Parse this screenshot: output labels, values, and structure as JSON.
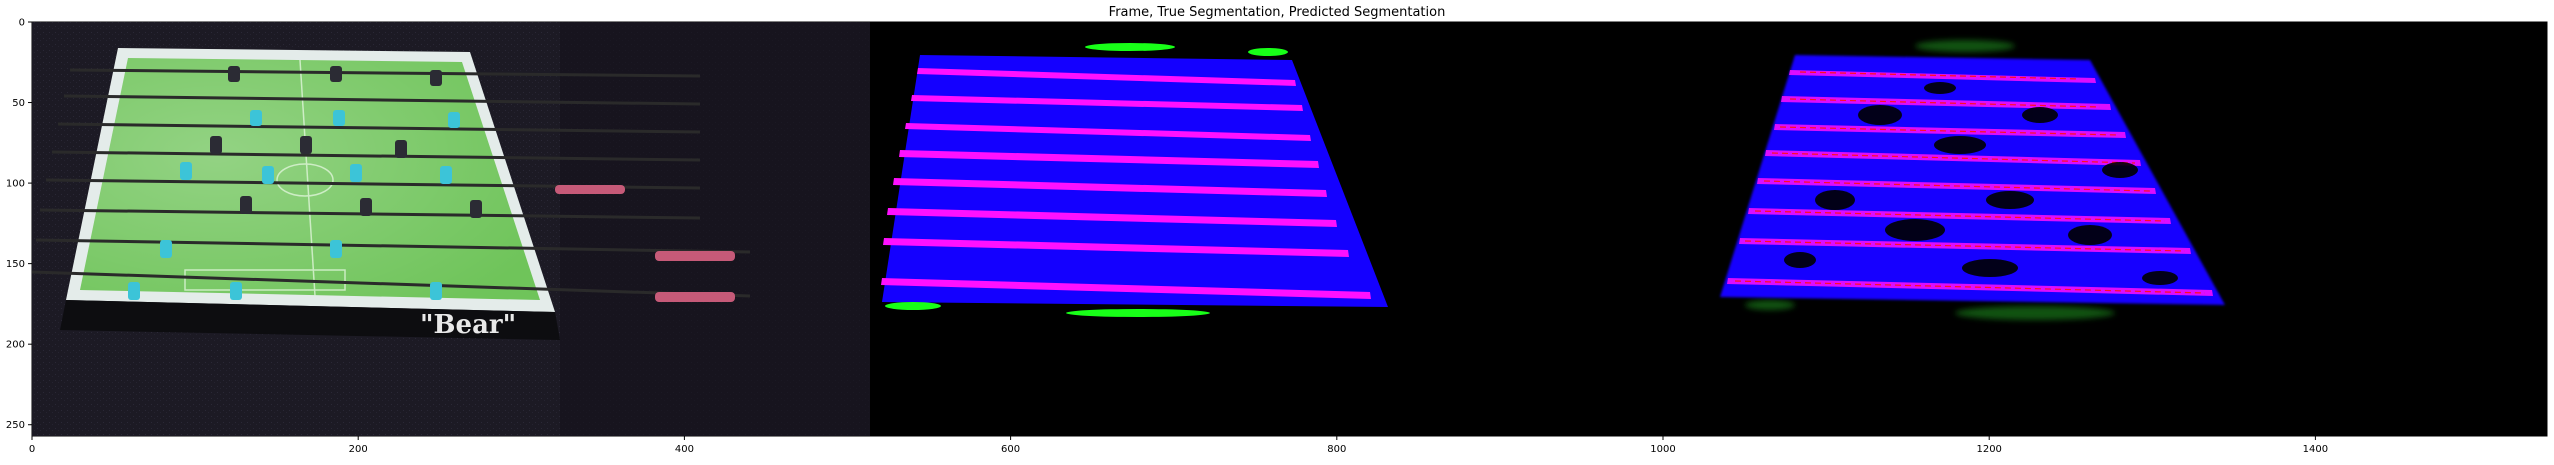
{
  "figure": {
    "title": "Frame, True Segmentation, Predicted Segmentation",
    "x_ticks": [
      "0",
      "200",
      "400",
      "600",
      "800",
      "1000",
      "1200",
      "1400"
    ],
    "y_ticks": [
      "0",
      "50",
      "100",
      "150",
      "200",
      "250"
    ],
    "panels": [
      {
        "name": "frame",
        "overlay_text": "\"Bear\""
      },
      {
        "name": "true-segmentation"
      },
      {
        "name": "predicted-segmentation"
      }
    ],
    "colors": {
      "table_field": "#6fc45a",
      "player_cyan": "#3cc4d8",
      "seg_blue": "#1400ff",
      "seg_magenta": "#ff10ff",
      "seg_green": "#18ff18",
      "pred_red": "#ff1020",
      "background": "#000000"
    }
  }
}
